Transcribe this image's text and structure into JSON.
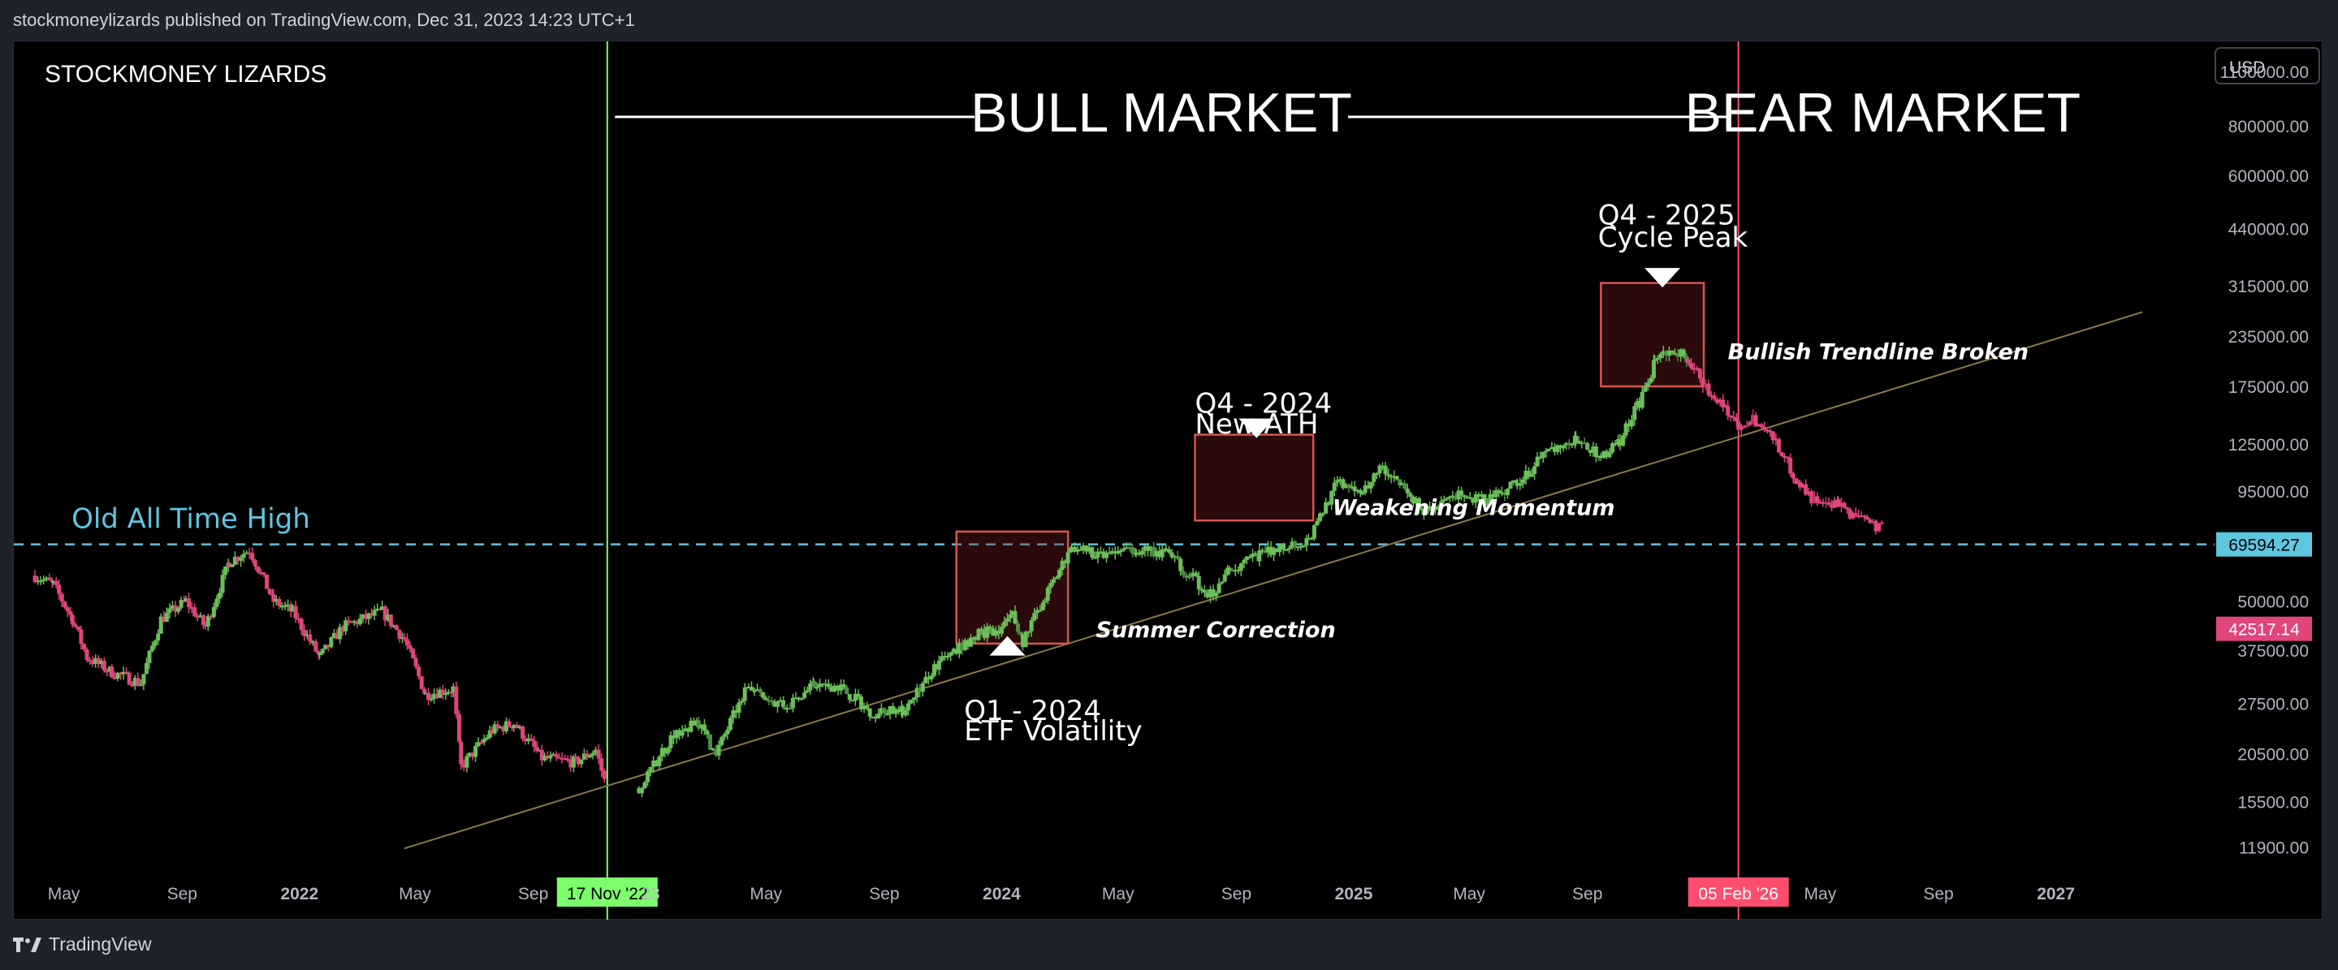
{
  "header": {
    "publisher": "stockmoneylizards published on TradingView.com, Dec 31, 2023 14:23 UTC+1"
  },
  "footer": {
    "brand": "TradingView",
    "brand_icon": "tradingview-logo-icon"
  },
  "colors": {
    "background": "#000000",
    "frame": "#1e222d",
    "axis_text": "#b2b5be",
    "bull_candle": "#6bbf59",
    "bear_candle": "#e0457b",
    "history_candle": "#e0457b",
    "start_line": "#7cff6b",
    "end_line": "#ff4d6d",
    "ath_line": "#5fc6e0",
    "trendline": "#8a7a4a",
    "box_border": "#d9534f",
    "box_fill": "rgba(120,30,30,0.35)"
  },
  "chart_data": {
    "type": "candlestick",
    "title": "STOCKMONEY LIZARDS",
    "currency": "USD",
    "y_scale": "log",
    "ylim": [
      9500,
      1250000
    ],
    "y_ticks": [
      "1100000.00",
      "800000.00",
      "600000.00",
      "440000.00",
      "315000.00",
      "235000.00",
      "175000.00",
      "125000.00",
      "95000.00",
      "50000.00",
      "37500.00",
      "27500.00",
      "20500.00",
      "15500.00",
      "11900.00"
    ],
    "x_ticks": [
      "May",
      "Sep",
      "2022",
      "May",
      "Sep",
      "17 Nov '22",
      "23",
      "May",
      "Sep",
      "2024",
      "May",
      "Sep",
      "2025",
      "May",
      "Sep",
      "05 Feb '26",
      "May",
      "Sep",
      "2027"
    ],
    "x_tick_dates": [
      "2021-05-01",
      "2021-09-01",
      "2022-01-01",
      "2022-05-01",
      "2022-09-01",
      "2022-11-17",
      "2023-01-01",
      "2023-05-01",
      "2023-09-01",
      "2024-01-01",
      "2024-05-01",
      "2024-09-01",
      "2025-01-01",
      "2025-05-01",
      "2025-09-01",
      "2026-02-05",
      "2026-05-01",
      "2026-09-01",
      "2027-01-01"
    ],
    "x_tick_badges": {
      "17 Nov '22": "#7cff6b",
      "05 Feb '26": "#ff4d6d"
    },
    "price_badges": [
      {
        "label": "69594.27",
        "value": 69594.27,
        "color": "#5fc6e0"
      },
      {
        "label": "42517.14",
        "value": 42517.14,
        "color": "#e0457b"
      }
    ],
    "series": [
      {
        "name": "",
        "role": "history",
        "points": [
          [
            "2021-04-01",
            58000
          ],
          [
            "2021-04-20",
            55000
          ],
          [
            "2021-05-10",
            45000
          ],
          [
            "2021-05-25",
            36000
          ],
          [
            "2021-06-20",
            33000
          ],
          [
            "2021-07-20",
            31000
          ],
          [
            "2021-08-10",
            45000
          ],
          [
            "2021-09-05",
            50000
          ],
          [
            "2021-09-25",
            43000
          ],
          [
            "2021-10-20",
            63000
          ],
          [
            "2021-11-10",
            67500
          ],
          [
            "2021-12-05",
            50000
          ],
          [
            "2021-12-25",
            47000
          ],
          [
            "2022-01-22",
            36000
          ],
          [
            "2022-02-15",
            43000
          ],
          [
            "2022-03-28",
            47000
          ],
          [
            "2022-04-20",
            40000
          ],
          [
            "2022-05-12",
            29000
          ],
          [
            "2022-06-10",
            30000
          ],
          [
            "2022-06-18",
            19000
          ],
          [
            "2022-07-20",
            23500
          ],
          [
            "2022-08-12",
            24500
          ],
          [
            "2022-09-10",
            20000
          ],
          [
            "2022-10-15",
            19500
          ],
          [
            "2022-11-05",
            21000
          ],
          [
            "2022-11-17",
            16500
          ]
        ]
      },
      {
        "name": "",
        "role": "bull",
        "points": [
          [
            "2022-12-20",
            16800
          ],
          [
            "2023-01-25",
            23000
          ],
          [
            "2023-02-20",
            24500
          ],
          [
            "2023-03-10",
            20500
          ],
          [
            "2023-04-10",
            30000
          ],
          [
            "2023-05-20",
            27000
          ],
          [
            "2023-06-20",
            30500
          ],
          [
            "2023-07-15",
            30500
          ],
          [
            "2023-08-20",
            26000
          ],
          [
            "2023-09-20",
            26500
          ],
          [
            "2023-10-25",
            34500
          ],
          [
            "2023-12-05",
            41000
          ],
          [
            "2024-01-01",
            43000
          ],
          [
            "2024-01-12",
            46000
          ],
          [
            "2024-01-23",
            39500
          ],
          [
            "2024-02-15",
            51000
          ],
          [
            "2024-03-14",
            69000
          ],
          [
            "2024-04-10",
            65000
          ],
          [
            "2024-05-20",
            68000
          ],
          [
            "2024-06-20",
            66000
          ],
          [
            "2024-07-15",
            58000
          ],
          [
            "2024-08-05",
            52000
          ],
          [
            "2024-08-25",
            60000
          ],
          [
            "2024-09-25",
            65000
          ],
          [
            "2024-10-20",
            69000
          ],
          [
            "2024-11-15",
            71000
          ],
          [
            "2024-12-15",
            100000
          ],
          [
            "2025-01-10",
            96000
          ],
          [
            "2025-01-31",
            110000
          ],
          [
            "2025-02-20",
            98000
          ],
          [
            "2025-03-15",
            85000
          ],
          [
            "2025-04-20",
            93000
          ],
          [
            "2025-05-20",
            90000
          ],
          [
            "2025-06-20",
            100000
          ],
          [
            "2025-07-20",
            118000
          ],
          [
            "2025-08-20",
            128000
          ],
          [
            "2025-09-15",
            116000
          ],
          [
            "2025-10-05",
            128000
          ],
          [
            "2025-10-25",
            160000
          ],
          [
            "2025-11-10",
            200000
          ],
          [
            "2025-11-25",
            220000
          ],
          [
            "2025-12-15",
            205000
          ]
        ]
      },
      {
        "name": "",
        "role": "bear",
        "points": [
          [
            "2025-12-15",
            205000
          ],
          [
            "2026-01-05",
            170000
          ],
          [
            "2026-01-25",
            150000
          ],
          [
            "2026-02-05",
            140000
          ],
          [
            "2026-02-20",
            145000
          ],
          [
            "2026-03-10",
            132000
          ],
          [
            "2026-03-25",
            115000
          ],
          [
            "2026-04-10",
            98000
          ],
          [
            "2026-04-25",
            90000
          ],
          [
            "2026-05-10",
            86000
          ],
          [
            "2026-05-20",
            88000
          ],
          [
            "2026-06-10",
            80000
          ],
          [
            "2026-06-25",
            78000
          ],
          [
            "2026-07-05",
            77000
          ]
        ]
      }
    ],
    "reference_lines": [
      {
        "type": "horizontal",
        "value": 69594.27,
        "label": "Old All Time High",
        "style": "dashed"
      },
      {
        "type": "vertical",
        "date": "2022-11-17",
        "color": "#7cff6b"
      },
      {
        "type": "vertical",
        "date": "2026-02-05",
        "color": "#ff4d6d"
      },
      {
        "type": "trendline",
        "from": [
          "2022-04-20",
          11800
        ],
        "to": [
          "2027-04-01",
          270000
        ]
      }
    ],
    "boxes": [
      {
        "from": [
          "2023-11-15",
          39000
        ],
        "to": [
          "2024-03-10",
          75000
        ]
      },
      {
        "from": [
          "2024-07-20",
          80000
        ],
        "to": [
          "2024-11-20",
          132000
        ]
      },
      {
        "from": [
          "2025-09-15",
          175000
        ],
        "to": [
          "2025-12-31",
          320000
        ]
      }
    ],
    "markers": [
      {
        "date": "2024-01-07",
        "value": 38500,
        "direction": "up"
      },
      {
        "date": "2024-09-22",
        "value": 137000,
        "direction": "down"
      },
      {
        "date": "2025-11-18",
        "value": 330000,
        "direction": "down"
      }
    ],
    "annotations": {
      "bull_market": "BULL MARKET",
      "bear_market": "BEAR MARKET",
      "old_ath": "Old All Time High",
      "q1_title": "Q1 - 2024",
      "q1_sub": "ETF Volatility",
      "q4_2024_title": "Q4 - 2024",
      "q4_2024_sub": "New ATH",
      "q4_2025_title": "Q4 - 2025",
      "q4_2025_sub": "Cycle Peak",
      "summer_correction": "Summer Correction",
      "weakening_momentum": "Weakening Momentum",
      "trendline_broken": "Bullish Trendline Broken"
    }
  }
}
